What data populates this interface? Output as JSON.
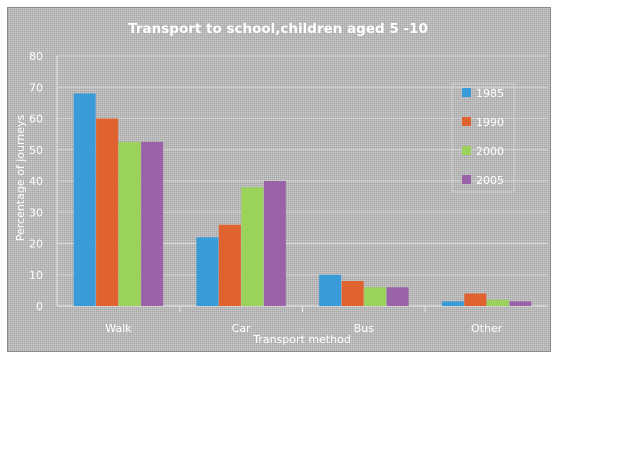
{
  "chart_data": {
    "type": "bar",
    "title": "Transport to school,children aged 5 -10",
    "xlabel": "Transport method",
    "ylabel": "Percentage of journeys",
    "categories": [
      "Walk",
      "Car",
      "Bus",
      "Other"
    ],
    "series": [
      {
        "name": "1985",
        "color": "#3a9bd9",
        "values": [
          68,
          22,
          10,
          1.5
        ]
      },
      {
        "name": "1990",
        "color": "#e0622e",
        "values": [
          60,
          26,
          8,
          4
        ]
      },
      {
        "name": "2000",
        "color": "#9bd35a",
        "values": [
          52.5,
          38,
          6,
          2
        ]
      },
      {
        "name": "2005",
        "color": "#9a62a8",
        "values": [
          52.5,
          40,
          6,
          1.5
        ]
      }
    ],
    "ylim": [
      0,
      80
    ],
    "yticks": [
      0,
      10,
      20,
      30,
      40,
      50,
      60,
      70,
      80
    ],
    "grid": true,
    "legend_position": "right"
  }
}
